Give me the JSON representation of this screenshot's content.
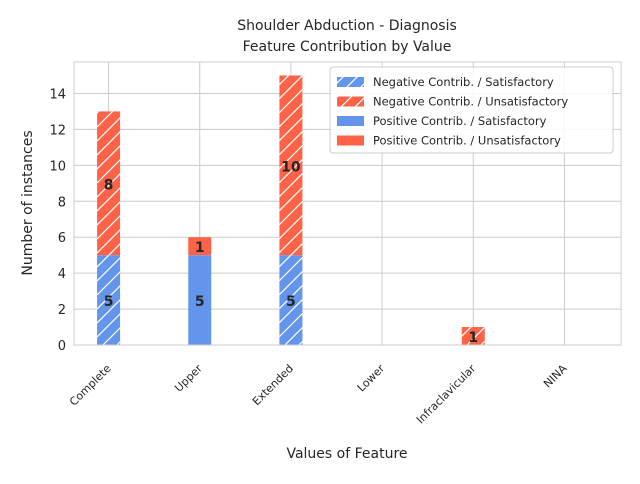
{
  "chart_data": {
    "type": "bar",
    "stacked": true,
    "title_lines": [
      "Shoulder Abduction - Diagnosis",
      "Feature Contribution by Value"
    ],
    "xlabel": "Values of Feature",
    "ylabel": "Number of instances",
    "categories": [
      "Complete",
      "Upper",
      "Extended",
      "Lower",
      "Infraclavicular",
      "NINA"
    ],
    "ylim": [
      0,
      15.75
    ],
    "yticks": [
      0,
      2,
      4,
      6,
      8,
      10,
      12,
      14
    ],
    "grid": true,
    "legend_position": "top-right",
    "colors": {
      "satisfactory": "#6495ed",
      "unsatisfactory": "#ff6347"
    },
    "series": [
      {
        "name": "Negative Contrib. / Satisfactory",
        "stack": "negative",
        "outcome": "satisfactory",
        "hatched": true,
        "values": [
          5,
          0,
          5,
          0,
          0,
          0
        ]
      },
      {
        "name": "Negative Contrib. / Unsatisfactory",
        "stack": "negative",
        "outcome": "unsatisfactory",
        "hatched": true,
        "values": [
          8,
          0,
          10,
          0,
          1,
          0
        ]
      },
      {
        "name": "Positive Contrib. / Satisfactory",
        "stack": "positive",
        "outcome": "satisfactory",
        "hatched": false,
        "values": [
          0,
          5,
          0,
          0,
          0,
          0
        ]
      },
      {
        "name": "Positive Contrib. / Unsatisfactory",
        "stack": "positive",
        "outcome": "unsatisfactory",
        "hatched": false,
        "values": [
          0,
          1,
          0,
          0,
          0,
          0
        ]
      }
    ]
  }
}
